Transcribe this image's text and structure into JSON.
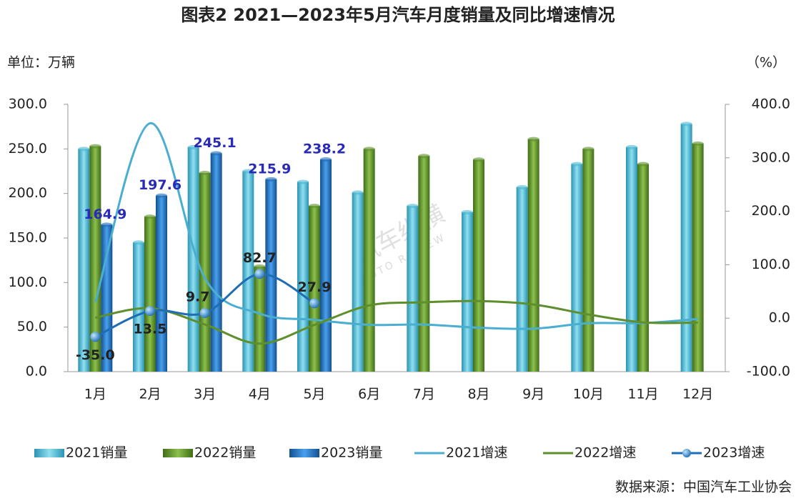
{
  "chart_data": {
    "type": "bar",
    "title": "图表2    2021—2023年5月汽车月度销量及同比增速情况",
    "y_label": "单位：万辆",
    "y2_label": "（%）",
    "source": "数据来源：中国汽车工业协会",
    "watermark": [
      "汽车纵横",
      "AUTO REVIEW"
    ],
    "categories": [
      "1月",
      "2月",
      "3月",
      "4月",
      "5月",
      "6月",
      "7月",
      "8月",
      "9月",
      "10月",
      "11月",
      "12月"
    ],
    "ylim": [
      0,
      300
    ],
    "yticks": [
      {
        "value": 0,
        "label": "0.0"
      },
      {
        "value": 50,
        "label": "50.0"
      },
      {
        "value": 100,
        "label": "100.0"
      },
      {
        "value": 150,
        "label": "150.0"
      },
      {
        "value": 200,
        "label": "200.0"
      },
      {
        "value": 250,
        "label": "250.0"
      },
      {
        "value": 300,
        "label": "300.0"
      }
    ],
    "y2lim": [
      -100,
      400
    ],
    "y2ticks": [
      {
        "value": -100,
        "label": "-100.0"
      },
      {
        "value": 0,
        "label": "0.0"
      },
      {
        "value": 100,
        "label": "100.0"
      },
      {
        "value": 200,
        "label": "200.0"
      },
      {
        "value": 300,
        "label": "300.0"
      },
      {
        "value": 400,
        "label": "400.0"
      }
    ],
    "legend": "bottom",
    "series": [
      {
        "name": "2021销量",
        "type": "bar",
        "color": "#4bb8d4",
        "values": [
          250,
          145,
          252,
          225,
          213,
          201,
          186,
          179,
          207,
          233,
          252,
          278
        ]
      },
      {
        "name": "2022销量",
        "type": "bar",
        "color": "#5e8f2c",
        "values": [
          253,
          174,
          223,
          118,
          186,
          250,
          242,
          238,
          261,
          250,
          233,
          256
        ]
      },
      {
        "name": "2023销量",
        "type": "bar",
        "color": "#1f6db5",
        "values": [
          164.9,
          197.6,
          245.1,
          215.9,
          238.2,
          null,
          null,
          null,
          null,
          null,
          null,
          null
        ],
        "labels": true
      },
      {
        "name": "2021增速",
        "type": "line",
        "axis": "y2",
        "color": "#4aaed0",
        "values": [
          29.9,
          364.6,
          74.9,
          8.6,
          -3.1,
          -12.4,
          -11.9,
          -17.8,
          -19.6,
          -9.4,
          -9.1,
          -1.6
        ]
      },
      {
        "name": "2022增速",
        "type": "line",
        "axis": "y2",
        "color": "#5e8f2c",
        "values": [
          0.9,
          18.7,
          -11.7,
          -47.6,
          -12.6,
          23.8,
          29.7,
          32.1,
          25.7,
          6.9,
          -7.9,
          -8.4
        ]
      },
      {
        "name": "2023增速",
        "type": "line",
        "axis": "y2",
        "color": "#1f6db5",
        "marker": true,
        "values": [
          -35.0,
          13.5,
          9.7,
          82.7,
          27.9,
          null,
          null,
          null,
          null,
          null,
          null,
          null
        ],
        "value_labels": [
          "-35.0",
          "13.5",
          "9.7",
          "82.7",
          "27.9"
        ]
      }
    ]
  }
}
